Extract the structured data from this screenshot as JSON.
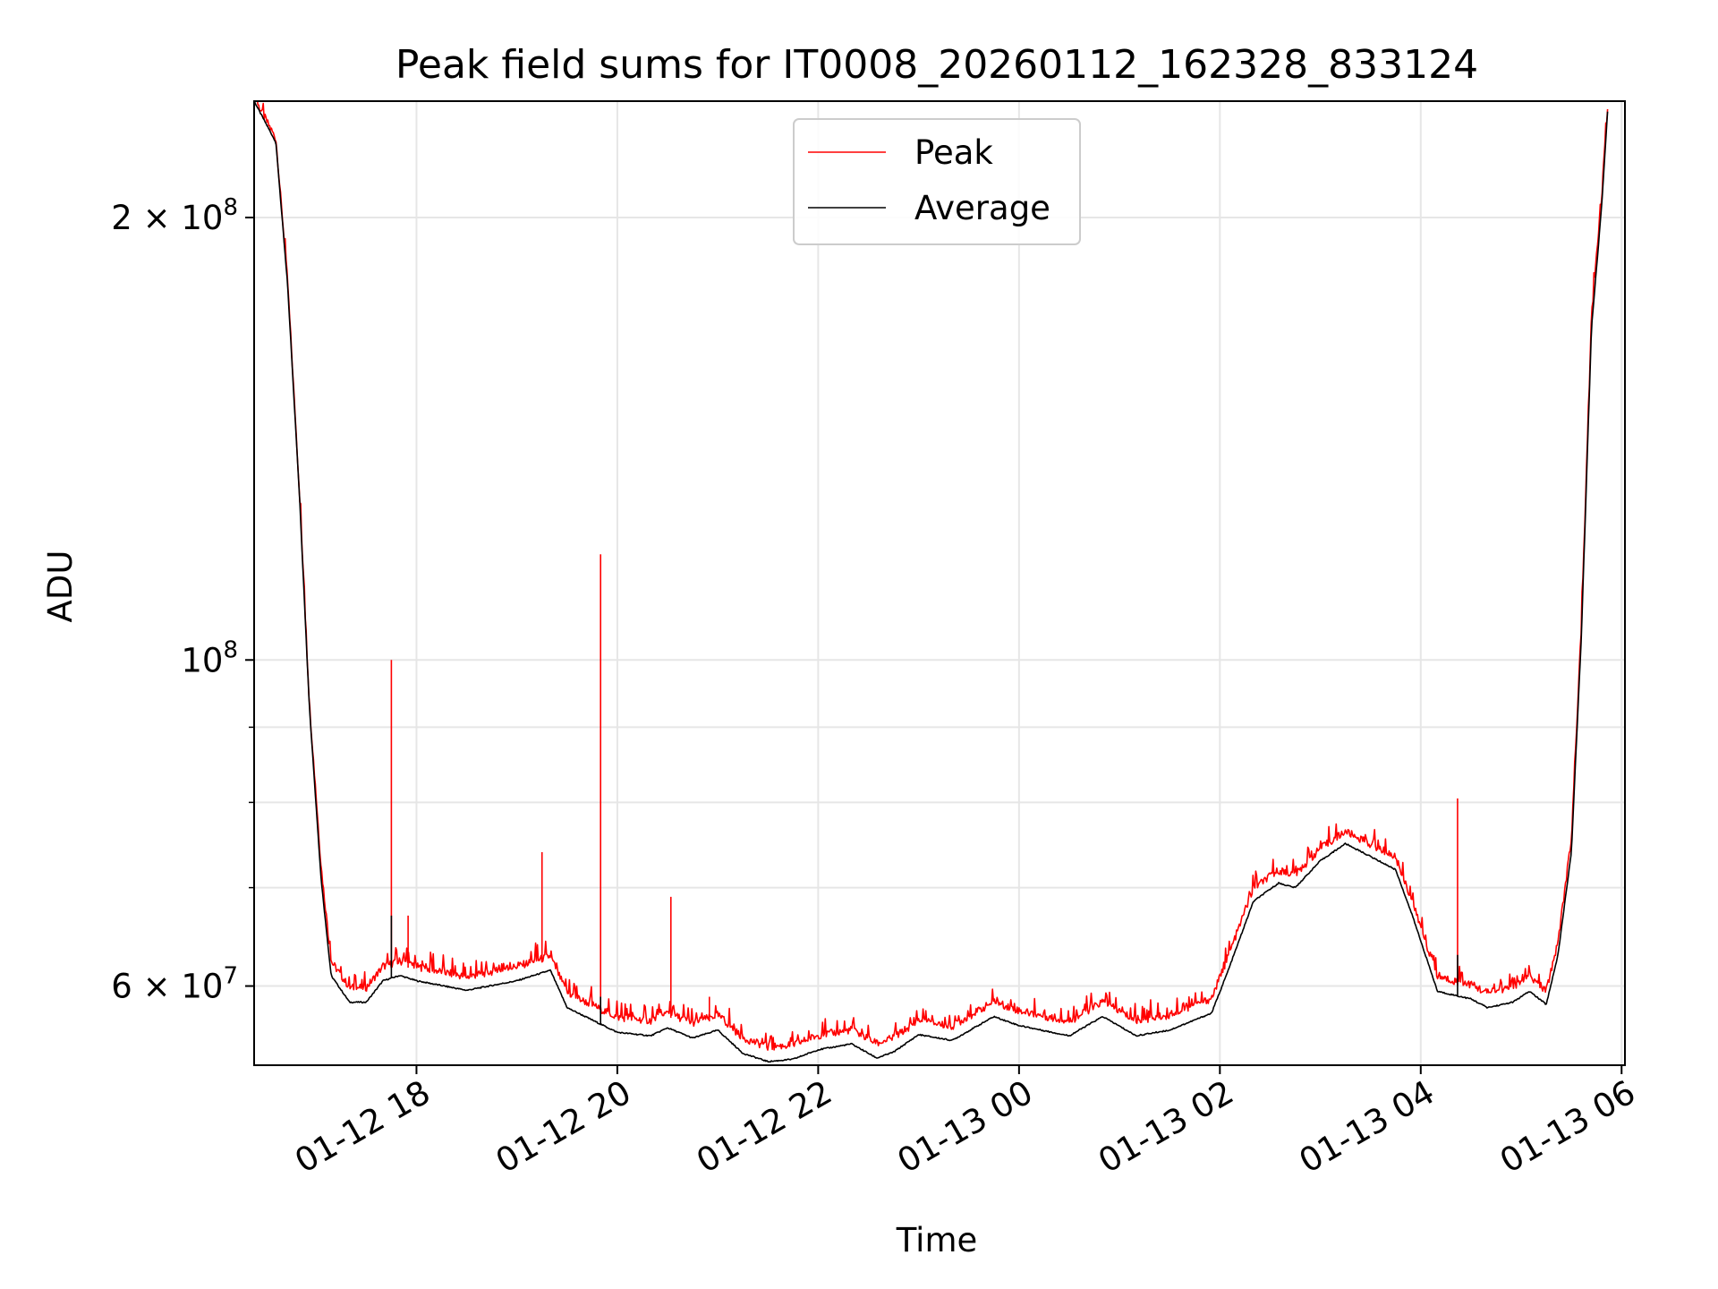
{
  "chart_data": {
    "type": "line",
    "title": "Peak field sums for IT0008_20260112_162328_833124",
    "xlabel": "Time",
    "ylabel": "ADU",
    "y_scale": "log",
    "xlim": [
      "2026-01-12 16:23",
      "2026-01-13 06:02"
    ],
    "ylim": [
      53000000,
      240000000
    ],
    "grid": true,
    "legend_position": "top-center",
    "x_ticks": [
      {
        "value": "2026-01-12 18:00",
        "label": "01-12 18"
      },
      {
        "value": "2026-01-12 20:00",
        "label": "01-12 20"
      },
      {
        "value": "2026-01-12 22:00",
        "label": "01-12 22"
      },
      {
        "value": "2026-01-13 00:00",
        "label": "01-13 00"
      },
      {
        "value": "2026-01-13 02:00",
        "label": "01-13 02"
      },
      {
        "value": "2026-01-13 04:00",
        "label": "01-13 04"
      },
      {
        "value": "2026-01-13 06:00",
        "label": "01-13 06"
      }
    ],
    "y_ticks_major": [
      {
        "value": 200000000,
        "mantissa": "2 × 10",
        "exponent": "8"
      },
      {
        "value": 100000000,
        "mantissa": "10",
        "exponent": "8"
      },
      {
        "value": 60000000,
        "mantissa": "6 × 10",
        "exponent": "7"
      }
    ],
    "y_ticks_minor": [
      70000000,
      80000000,
      90000000
    ],
    "series": [
      {
        "name": "Peak",
        "color": "#ff0000",
        "x": [
          "2026-01-12 16:23",
          "2026-01-12 16:36",
          "2026-01-12 16:43",
          "2026-01-12 16:50",
          "2026-01-12 16:56",
          "2026-01-12 17:03",
          "2026-01-12 17:09",
          "2026-01-12 17:20",
          "2026-01-12 17:30",
          "2026-01-12 17:40",
          "2026-01-12 17:50",
          "2026-01-12 18:00",
          "2026-01-12 18:30",
          "2026-01-12 19:00",
          "2026-01-12 19:20",
          "2026-01-12 19:30",
          "2026-01-12 20:00",
          "2026-01-12 20:20",
          "2026-01-12 20:30",
          "2026-01-12 20:45",
          "2026-01-12 21:00",
          "2026-01-12 21:15",
          "2026-01-12 21:30",
          "2026-01-12 21:45",
          "2026-01-12 22:00",
          "2026-01-12 22:20",
          "2026-01-12 22:35",
          "2026-01-12 22:45",
          "2026-01-12 23:00",
          "2026-01-12 23:20",
          "2026-01-12 23:45",
          "2026-01-13 00:00",
          "2026-01-13 00:30",
          "2026-01-13 00:50",
          "2026-01-13 01:10",
          "2026-01-13 01:30",
          "2026-01-13 01:55",
          "2026-01-13 02:05",
          "2026-01-13 02:20",
          "2026-01-13 02:35",
          "2026-01-13 02:45",
          "2026-01-13 03:00",
          "2026-01-13 03:15",
          "2026-01-13 03:30",
          "2026-01-13 03:45",
          "2026-01-13 03:55",
          "2026-01-13 04:10",
          "2026-01-13 04:30",
          "2026-01-13 04:40",
          "2026-01-13 04:55",
          "2026-01-13 05:05",
          "2026-01-13 05:15",
          "2026-01-13 05:22",
          "2026-01-13 05:30",
          "2026-01-13 05:36",
          "2026-01-13 05:42",
          "2026-01-13 05:48",
          "2026-01-13 05:52"
        ],
        "y": [
          240000000,
          225000000,
          180000000,
          130000000,
          93000000,
          72000000,
          62000000,
          59500000,
          59500000,
          61500000,
          62000000,
          61500000,
          60500000,
          61500000,
          62500000,
          59000000,
          56800000,
          56500000,
          57200000,
          56300000,
          57000000,
          55000000,
          54200000,
          54400000,
          55200000,
          55700000,
          54500000,
          55000000,
          56500000,
          56000000,
          58200000,
          57400000,
          56400000,
          58200000,
          56500000,
          57000000,
          58500000,
          62500000,
          69500000,
          71500000,
          71000000,
          74000000,
          76000000,
          74500000,
          73000000,
          68000000,
          60500000,
          59800000,
          59000000,
          59500000,
          60500000,
          59200000,
          64000000,
          75000000,
          105000000,
          170000000,
          205000000,
          240000000
        ],
        "spikes": [
          {
            "x": "2026-01-12 17:45",
            "y": 100000000
          },
          {
            "x": "2026-01-12 17:55",
            "y": 67000000
          },
          {
            "x": "2026-01-12 19:15",
            "y": 74000000
          },
          {
            "x": "2026-01-12 19:50",
            "y": 118000000
          },
          {
            "x": "2026-01-12 20:32",
            "y": 69000000
          },
          {
            "x": "2026-01-12 20:55",
            "y": 59000000
          },
          {
            "x": "2026-01-13 04:22",
            "y": 80500000
          }
        ]
      },
      {
        "name": "Average",
        "color": "#000000",
        "x": [
          "2026-01-12 16:23",
          "2026-01-12 16:36",
          "2026-01-12 16:43",
          "2026-01-12 16:50",
          "2026-01-12 16:56",
          "2026-01-12 17:03",
          "2026-01-12 17:09",
          "2026-01-12 17:20",
          "2026-01-12 17:30",
          "2026-01-12 17:40",
          "2026-01-12 17:50",
          "2026-01-12 18:00",
          "2026-01-12 18:30",
          "2026-01-12 19:00",
          "2026-01-12 19:20",
          "2026-01-12 19:30",
          "2026-01-12 20:00",
          "2026-01-12 20:20",
          "2026-01-12 20:30",
          "2026-01-12 20:45",
          "2026-01-12 21:00",
          "2026-01-12 21:15",
          "2026-01-12 21:30",
          "2026-01-12 21:45",
          "2026-01-12 22:00",
          "2026-01-12 22:20",
          "2026-01-12 22:35",
          "2026-01-12 22:45",
          "2026-01-12 23:00",
          "2026-01-12 23:20",
          "2026-01-12 23:45",
          "2026-01-13 00:00",
          "2026-01-13 00:30",
          "2026-01-13 00:50",
          "2026-01-13 01:10",
          "2026-01-13 01:30",
          "2026-01-13 01:55",
          "2026-01-13 02:05",
          "2026-01-13 02:20",
          "2026-01-13 02:35",
          "2026-01-13 02:45",
          "2026-01-13 03:00",
          "2026-01-13 03:15",
          "2026-01-13 03:30",
          "2026-01-13 03:45",
          "2026-01-13 03:55",
          "2026-01-13 04:10",
          "2026-01-13 04:30",
          "2026-01-13 04:40",
          "2026-01-13 04:55",
          "2026-01-13 05:05",
          "2026-01-13 05:15",
          "2026-01-13 05:22",
          "2026-01-13 05:30",
          "2026-01-13 05:36",
          "2026-01-13 05:42",
          "2026-01-13 05:48",
          "2026-01-13 05:52"
        ],
        "y": [
          240000000,
          225000000,
          180000000,
          130000000,
          93000000,
          71000000,
          61000000,
          58500000,
          58500000,
          60500000,
          61000000,
          60500000,
          59600000,
          60500000,
          61500000,
          58000000,
          55800000,
          55500000,
          56200000,
          55300000,
          56000000,
          54000000,
          53300000,
          53500000,
          54300000,
          54800000,
          53600000,
          54100000,
          55600000,
          55100000,
          57200000,
          56400000,
          55500000,
          57200000,
          55500000,
          56000000,
          57500000,
          61500000,
          68500000,
          70500000,
          70000000,
          73000000,
          75000000,
          73500000,
          72000000,
          67000000,
          59500000,
          58800000,
          58000000,
          58500000,
          59500000,
          58300000,
          63000000,
          74000000,
          104000000,
          168000000,
          203000000,
          240000000
        ],
        "spikes": [
          {
            "x": "2026-01-12 17:45",
            "y": 67000000
          },
          {
            "x": "2026-01-12 19:50",
            "y": 59000000
          },
          {
            "x": "2026-01-13 04:22",
            "y": 63000000
          }
        ]
      }
    ]
  }
}
